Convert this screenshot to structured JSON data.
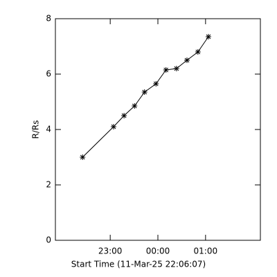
{
  "chart_data": {
    "type": "line",
    "x_label": "Start Time (11-Mar-25 22:06:07)",
    "y_label": "R/Rs",
    "x": [
      -1.58,
      -0.93,
      -0.71,
      -0.49,
      -0.28,
      -0.04,
      0.17,
      0.39,
      0.61,
      0.84,
      1.06
    ],
    "values": [
      3.0,
      4.1,
      4.5,
      4.85,
      5.35,
      5.65,
      6.15,
      6.2,
      6.5,
      6.8,
      7.35
    ],
    "color": "#000000",
    "marker": "asterisk",
    "xlim": [
      -2.15,
      2.15
    ],
    "xticks": [
      {
        "value": -1,
        "label": "23:00"
      },
      {
        "value": 0,
        "label": "00:00"
      },
      {
        "value": 1,
        "label": "01:00"
      }
    ],
    "ylim": [
      0,
      8
    ],
    "yticks": [
      0,
      2,
      4,
      6,
      8
    ],
    "grid": false
  }
}
